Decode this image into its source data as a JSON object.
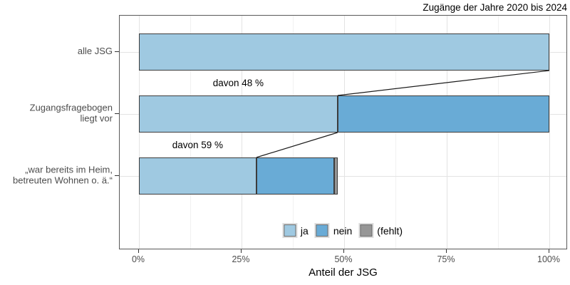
{
  "chart_data": {
    "type": "bar",
    "orientation": "horizontal_stacked_funnel",
    "title": "Zugänge der Jahre 2020 bis 2024",
    "xlabel": "Anteil der JSG",
    "xlim": [
      0,
      100
    ],
    "x_ticks": [
      "0%",
      "25%",
      "50%",
      "75%",
      "100%"
    ],
    "x_tick_values": [
      0,
      25,
      50,
      75,
      100
    ],
    "x_minor_values": [
      12.5,
      37.5,
      62.5,
      87.5
    ],
    "grid": "on",
    "legend_position": "bottom-inside",
    "legend": [
      {
        "key": "ja",
        "label": "ja",
        "color": "#9fc9e1"
      },
      {
        "key": "nein",
        "label": "nein",
        "color": "#69abd6"
      },
      {
        "key": "fehlt",
        "label": "(fehlt)",
        "color": "#969696"
      }
    ],
    "rows": [
      {
        "label": "alle JSG",
        "annotation": "",
        "segments": [
          {
            "key": "ja",
            "from": 0,
            "to": 100
          }
        ]
      },
      {
        "label": "Zugangsfragebogen\nliegt vor",
        "annotation": "davon 48 %",
        "segments": [
          {
            "key": "ja",
            "from": 0,
            "to": 48.4
          },
          {
            "key": "nein",
            "from": 48.4,
            "to": 100
          }
        ]
      },
      {
        "label": "„war bereits im Heim,\nbetreuten Wohnen o. ä.“",
        "annotation": "davon 59 %",
        "segments": [
          {
            "key": "ja",
            "from": 0,
            "to": 28.6
          },
          {
            "key": "nein",
            "from": 28.6,
            "to": 47.6
          },
          {
            "key": "fehlt",
            "from": 47.6,
            "to": 48.4
          }
        ]
      }
    ],
    "connectors": [
      {
        "from_row": 0,
        "from_pct": 100,
        "to_row": 1,
        "to_pct": 48.4
      },
      {
        "from_row": 1,
        "from_pct": 48.4,
        "to_row": 2,
        "to_pct": 28.6
      }
    ],
    "colors": {
      "bar_border": "#3c3c3c",
      "panel_border": "#595959",
      "grid_major": "#e3e3e3",
      "grid_minor": "#f1f1f1",
      "axis_text": "#4d4d4d",
      "connector": "#1a1a1a"
    }
  }
}
